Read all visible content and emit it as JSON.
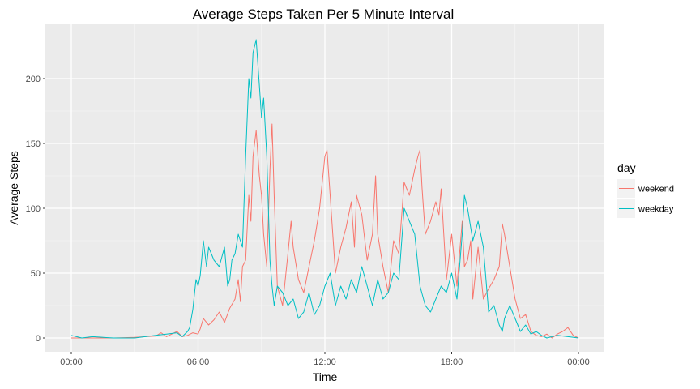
{
  "chart_data": {
    "type": "line",
    "title": "Average Steps Taken Per 5 Minute Interval",
    "xlabel": "Time",
    "ylabel": "Average Steps",
    "x_unit": "hour",
    "xlim": [
      0,
      24
    ],
    "ylim": [
      0,
      230
    ],
    "x_ticks": [
      0,
      6,
      12,
      18,
      24
    ],
    "x_tick_labels": [
      "00:00",
      "06:00",
      "12:00",
      "18:00",
      "00:00"
    ],
    "y_ticks": [
      0,
      50,
      100,
      150,
      200
    ],
    "y_tick_labels": [
      "0",
      "50",
      "100",
      "150",
      "200"
    ],
    "grid": true,
    "legend": {
      "title": "day",
      "position": "right"
    },
    "series": [
      {
        "name": "weekend",
        "color": "#F8766D",
        "points": [
          [
            0,
            0
          ],
          [
            0.25,
            0
          ],
          [
            0.5,
            0
          ],
          [
            1,
            0
          ],
          [
            2,
            0
          ],
          [
            3,
            0.5
          ],
          [
            3.5,
            1
          ],
          [
            4,
            1.5
          ],
          [
            4.25,
            4
          ],
          [
            4.5,
            1
          ],
          [
            4.75,
            3
          ],
          [
            5,
            5
          ],
          [
            5.25,
            1
          ],
          [
            5.5,
            2
          ],
          [
            5.75,
            4
          ],
          [
            6,
            3
          ],
          [
            6.1,
            7
          ],
          [
            6.25,
            15
          ],
          [
            6.5,
            10
          ],
          [
            6.75,
            14
          ],
          [
            7,
            20
          ],
          [
            7.25,
            12
          ],
          [
            7.5,
            23
          ],
          [
            7.75,
            30
          ],
          [
            7.9,
            45
          ],
          [
            8,
            28
          ],
          [
            8.1,
            55
          ],
          [
            8.25,
            60
          ],
          [
            8.4,
            110
          ],
          [
            8.5,
            90
          ],
          [
            8.6,
            140
          ],
          [
            8.75,
            160
          ],
          [
            8.9,
            125
          ],
          [
            9,
            110
          ],
          [
            9.1,
            80
          ],
          [
            9.25,
            55
          ],
          [
            9.4,
            130
          ],
          [
            9.5,
            165
          ],
          [
            9.6,
            110
          ],
          [
            9.75,
            40
          ],
          [
            10,
            25
          ],
          [
            10.25,
            65
          ],
          [
            10.4,
            90
          ],
          [
            10.5,
            70
          ],
          [
            10.75,
            45
          ],
          [
            11,
            35
          ],
          [
            11.25,
            55
          ],
          [
            11.5,
            75
          ],
          [
            11.75,
            100
          ],
          [
            12,
            140
          ],
          [
            12.1,
            145
          ],
          [
            12.25,
            110
          ],
          [
            12.5,
            50
          ],
          [
            12.75,
            70
          ],
          [
            13,
            85
          ],
          [
            13.25,
            105
          ],
          [
            13.4,
            70
          ],
          [
            13.5,
            110
          ],
          [
            13.75,
            95
          ],
          [
            14,
            60
          ],
          [
            14.25,
            80
          ],
          [
            14.4,
            125
          ],
          [
            14.5,
            80
          ],
          [
            14.75,
            55
          ],
          [
            15,
            35
          ],
          [
            15.25,
            75
          ],
          [
            15.5,
            65
          ],
          [
            15.75,
            120
          ],
          [
            16,
            110
          ],
          [
            16.25,
            130
          ],
          [
            16.4,
            140
          ],
          [
            16.5,
            145
          ],
          [
            16.6,
            115
          ],
          [
            16.75,
            80
          ],
          [
            17,
            90
          ],
          [
            17.25,
            105
          ],
          [
            17.4,
            95
          ],
          [
            17.5,
            115
          ],
          [
            17.75,
            45
          ],
          [
            18,
            80
          ],
          [
            18.25,
            40
          ],
          [
            18.5,
            90
          ],
          [
            18.6,
            55
          ],
          [
            18.75,
            60
          ],
          [
            18.9,
            75
          ],
          [
            19,
            30
          ],
          [
            19.25,
            70
          ],
          [
            19.5,
            30
          ],
          [
            19.75,
            38
          ],
          [
            20,
            45
          ],
          [
            20.25,
            55
          ],
          [
            20.4,
            88
          ],
          [
            20.5,
            80
          ],
          [
            20.75,
            55
          ],
          [
            21,
            30
          ],
          [
            21.25,
            15
          ],
          [
            21.5,
            18
          ],
          [
            21.75,
            5
          ],
          [
            22,
            2
          ],
          [
            22.25,
            1
          ],
          [
            22.5,
            3
          ],
          [
            22.75,
            0
          ],
          [
            23,
            3
          ],
          [
            23.25,
            5
          ],
          [
            23.5,
            8
          ],
          [
            23.75,
            2
          ],
          [
            24,
            0
          ]
        ]
      },
      {
        "name": "weekday",
        "color": "#00BFC4",
        "points": [
          [
            0,
            2
          ],
          [
            0.25,
            1
          ],
          [
            0.5,
            0
          ],
          [
            1,
            1
          ],
          [
            2,
            0
          ],
          [
            3,
            0
          ],
          [
            3.5,
            1
          ],
          [
            4,
            2
          ],
          [
            4.5,
            3
          ],
          [
            5,
            4
          ],
          [
            5.25,
            1
          ],
          [
            5.5,
            5
          ],
          [
            5.6,
            8
          ],
          [
            5.75,
            22
          ],
          [
            5.9,
            45
          ],
          [
            6,
            40
          ],
          [
            6.1,
            48
          ],
          [
            6.25,
            75
          ],
          [
            6.4,
            55
          ],
          [
            6.5,
            70
          ],
          [
            6.75,
            60
          ],
          [
            7,
            55
          ],
          [
            7.25,
            70
          ],
          [
            7.4,
            40
          ],
          [
            7.5,
            45
          ],
          [
            7.6,
            60
          ],
          [
            7.75,
            65
          ],
          [
            7.9,
            80
          ],
          [
            8,
            75
          ],
          [
            8.1,
            70
          ],
          [
            8.25,
            140
          ],
          [
            8.4,
            200
          ],
          [
            8.5,
            185
          ],
          [
            8.6,
            220
          ],
          [
            8.75,
            230
          ],
          [
            8.9,
            195
          ],
          [
            9,
            170
          ],
          [
            9.1,
            185
          ],
          [
            9.25,
            140
          ],
          [
            9.4,
            60
          ],
          [
            9.5,
            40
          ],
          [
            9.6,
            25
          ],
          [
            9.75,
            40
          ],
          [
            10,
            35
          ],
          [
            10.25,
            25
          ],
          [
            10.5,
            30
          ],
          [
            10.75,
            15
          ],
          [
            11,
            20
          ],
          [
            11.25,
            35
          ],
          [
            11.5,
            18
          ],
          [
            11.75,
            25
          ],
          [
            12,
            40
          ],
          [
            12.25,
            50
          ],
          [
            12.5,
            25
          ],
          [
            12.75,
            40
          ],
          [
            13,
            30
          ],
          [
            13.25,
            45
          ],
          [
            13.5,
            35
          ],
          [
            13.75,
            55
          ],
          [
            14,
            40
          ],
          [
            14.25,
            25
          ],
          [
            14.5,
            45
          ],
          [
            14.75,
            30
          ],
          [
            15,
            35
          ],
          [
            15.25,
            50
          ],
          [
            15.5,
            45
          ],
          [
            15.75,
            100
          ],
          [
            16,
            90
          ],
          [
            16.25,
            80
          ],
          [
            16.5,
            40
          ],
          [
            16.75,
            25
          ],
          [
            17,
            20
          ],
          [
            17.25,
            30
          ],
          [
            17.5,
            40
          ],
          [
            17.75,
            35
          ],
          [
            18,
            50
          ],
          [
            18.25,
            30
          ],
          [
            18.5,
            80
          ],
          [
            18.6,
            110
          ],
          [
            18.75,
            100
          ],
          [
            19,
            75
          ],
          [
            19.25,
            90
          ],
          [
            19.5,
            70
          ],
          [
            19.75,
            20
          ],
          [
            20,
            25
          ],
          [
            20.25,
            10
          ],
          [
            20.4,
            5
          ],
          [
            20.5,
            15
          ],
          [
            20.75,
            25
          ],
          [
            21,
            15
          ],
          [
            21.25,
            5
          ],
          [
            21.5,
            10
          ],
          [
            21.75,
            3
          ],
          [
            22,
            5
          ],
          [
            22.25,
            2
          ],
          [
            22.5,
            0
          ],
          [
            23,
            2
          ],
          [
            23.5,
            1
          ],
          [
            24,
            0
          ]
        ]
      }
    ]
  }
}
